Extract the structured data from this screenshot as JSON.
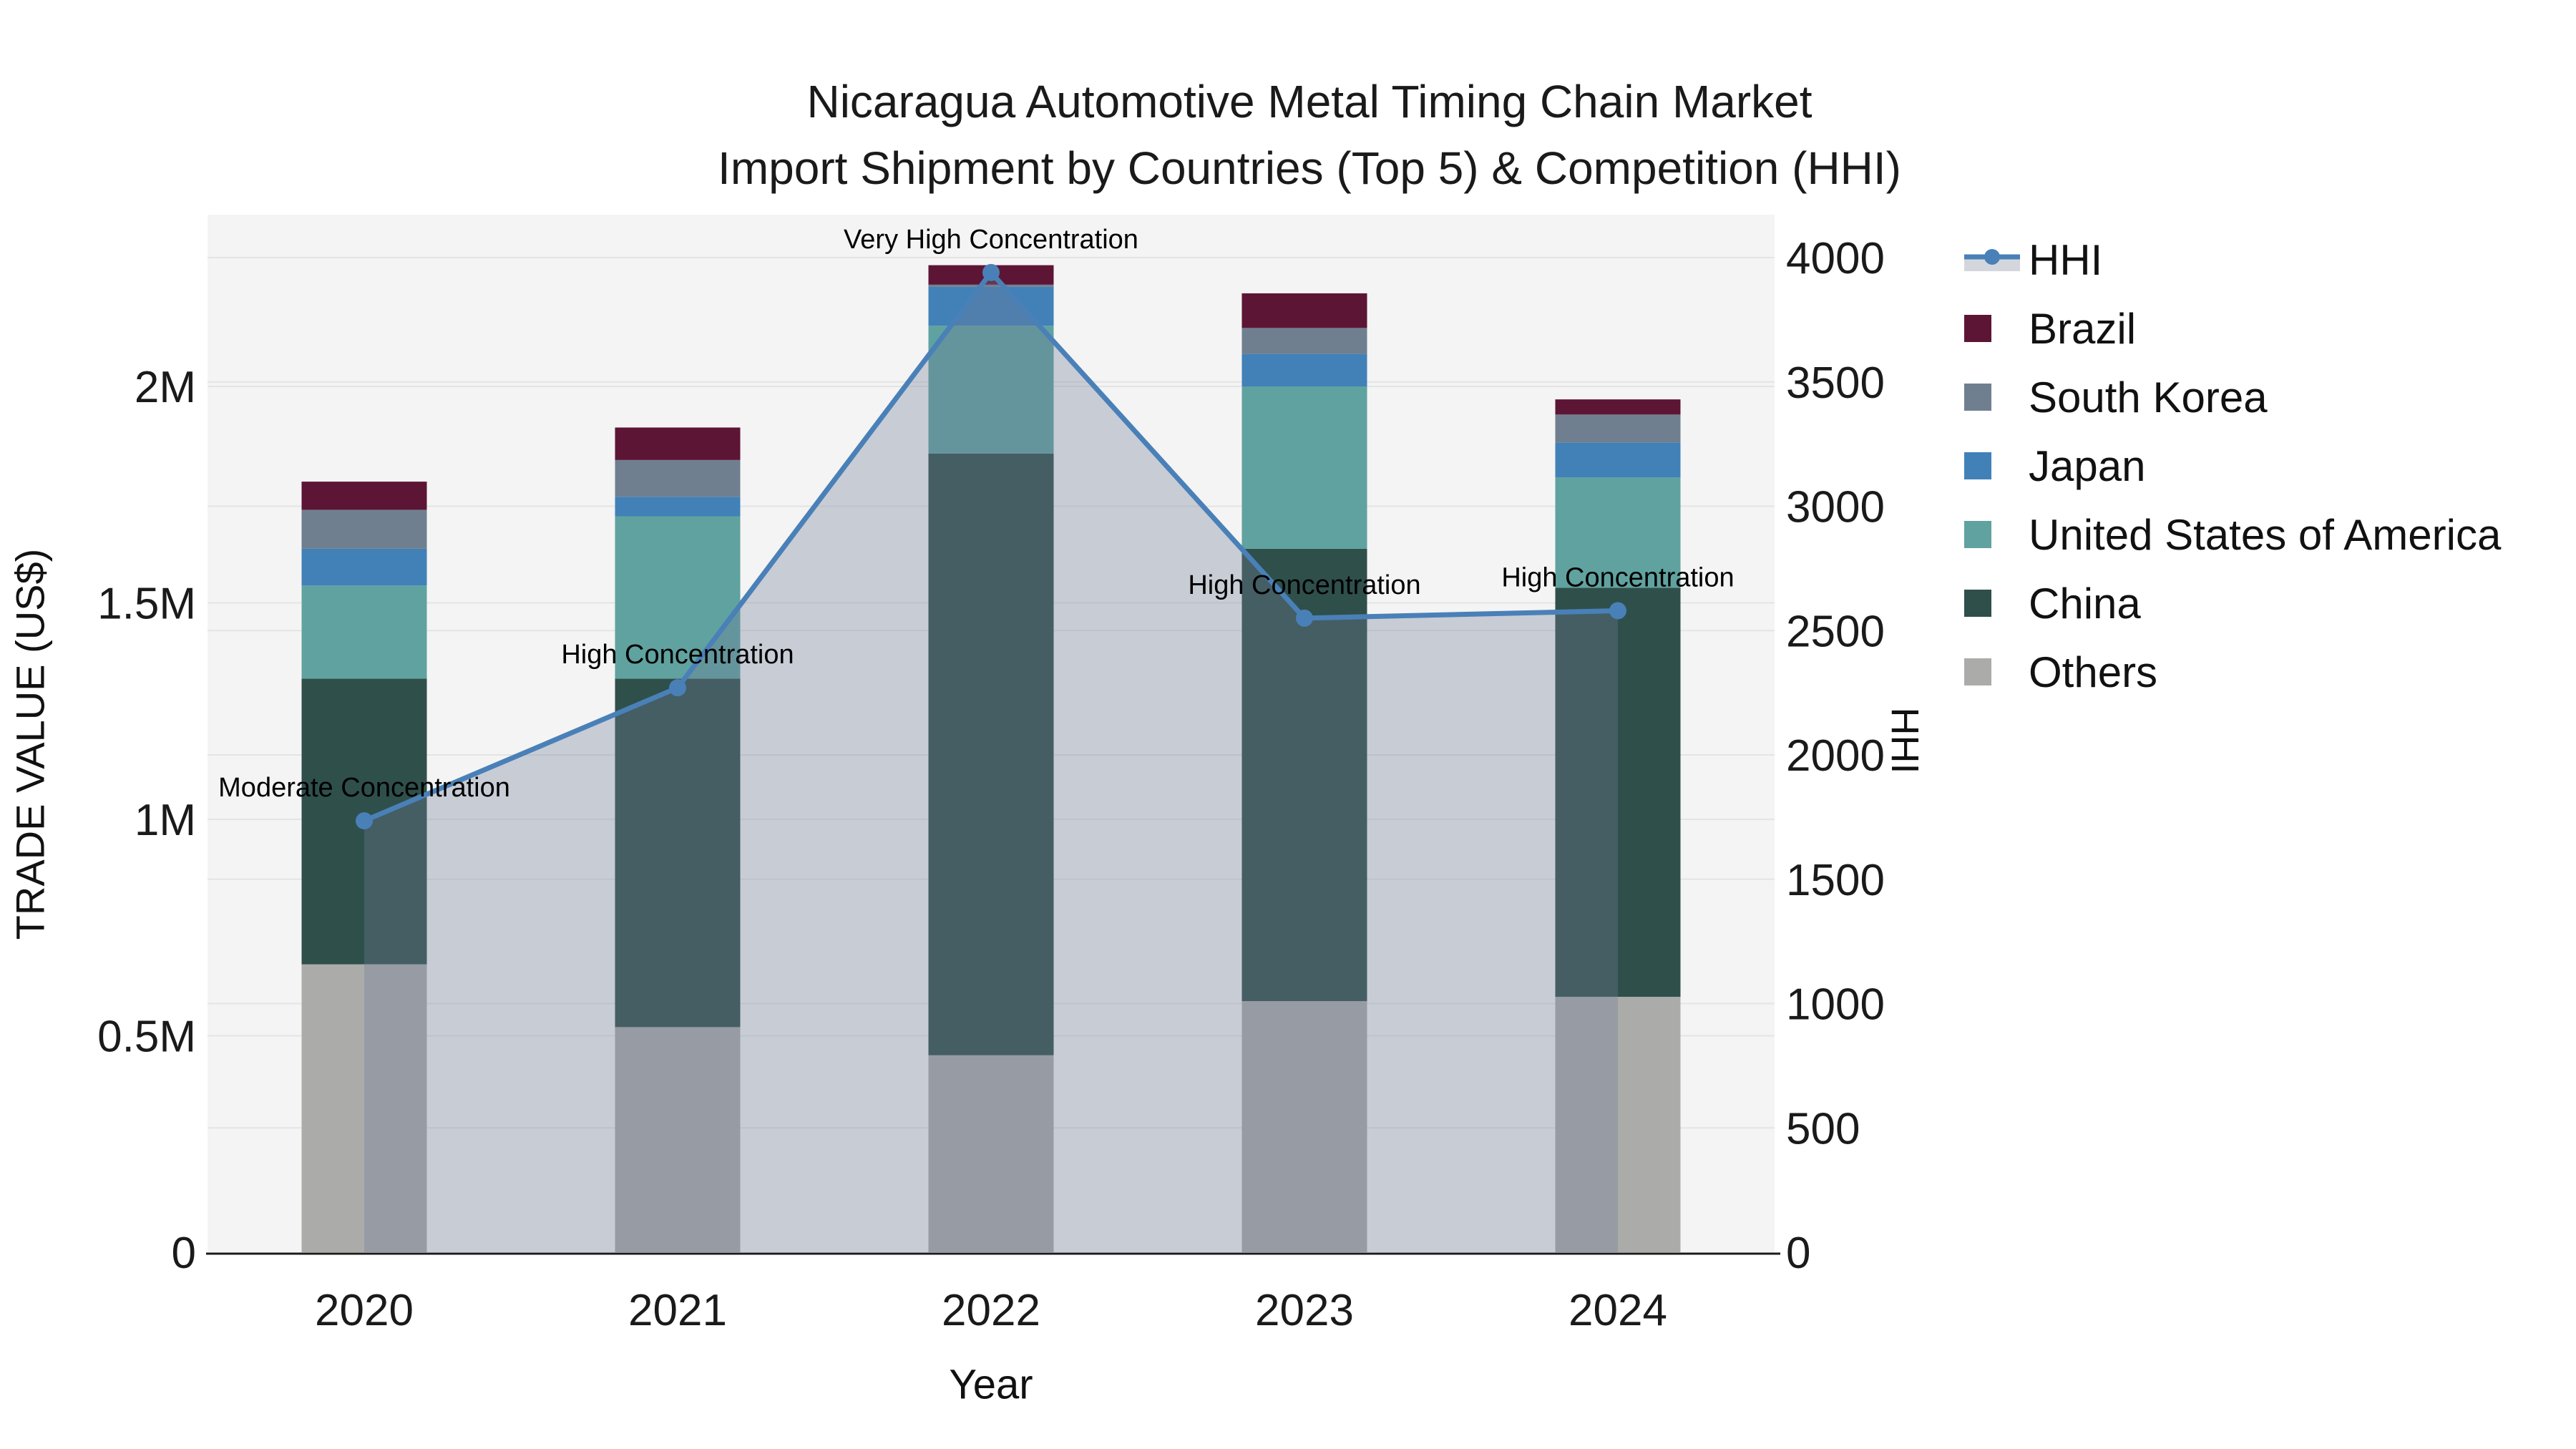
{
  "title": {
    "line1": "Nicaragua Automotive Metal Timing Chain Market",
    "line2": "Import Shipment by Countries (Top 5) & Competition (HHI)"
  },
  "colors": {
    "plot_bg": "#f4f4f4",
    "gridline": "#e4e4e4",
    "axis_line": "#1a1a1a",
    "text": "#1a1a1a",
    "hhi_line": "#4a80b8",
    "hhi_fill": "rgba(111,124,151,0.33)",
    "hhi_fill_legend": "#d3d7dd",
    "brazil": "#5d1535",
    "south_korea": "#6f7f8f",
    "japan": "#4181b8",
    "united_states_of_america": "#60a29f",
    "china": "#2f4f4b",
    "others": "#ababa9"
  },
  "legend": [
    {
      "label": "HHI",
      "kind": "line",
      "color": "#4a80b8"
    },
    {
      "label": "Brazil",
      "kind": "swatch",
      "color": "#5d1535"
    },
    {
      "label": "South Korea",
      "kind": "swatch",
      "color": "#6f7f8f"
    },
    {
      "label": "Japan",
      "kind": "swatch",
      "color": "#4181b8"
    },
    {
      "label": "United States of America",
      "kind": "swatch",
      "color": "#60a29f"
    },
    {
      "label": "China",
      "kind": "swatch",
      "color": "#2f4f4b"
    },
    {
      "label": "Others",
      "kind": "swatch",
      "color": "#ababa9"
    }
  ],
  "chart_data": {
    "type": "bar",
    "subtype": "stacked-bars-with-line-overlay",
    "categories": [
      "2020",
      "2021",
      "2022",
      "2023",
      "2024"
    ],
    "bar_value_unit": "US$ millions (left axis, M = million)",
    "series": [
      {
        "name": "Others",
        "color": "#ababa9",
        "values_m": [
          0.665,
          0.52,
          0.455,
          0.58,
          0.59
        ]
      },
      {
        "name": "China",
        "color": "#2f4f4b",
        "values_m": [
          0.66,
          0.805,
          1.39,
          1.045,
          0.945
        ]
      },
      {
        "name": "United States of America",
        "color": "#60a29f",
        "values_m": [
          0.215,
          0.375,
          0.295,
          0.375,
          0.255
        ]
      },
      {
        "name": "Japan",
        "color": "#4181b8",
        "values_m": [
          0.085,
          0.045,
          0.09,
          0.075,
          0.08
        ]
      },
      {
        "name": "South Korea",
        "color": "#6f7f8f",
        "values_m": [
          0.09,
          0.085,
          0.005,
          0.06,
          0.065
        ]
      },
      {
        "name": "Brazil",
        "color": "#5d1535",
        "values_m": [
          0.065,
          0.075,
          0.045,
          0.08,
          0.035
        ]
      }
    ],
    "stack_note": "series listed bottom-to-top",
    "line_series": {
      "name": "HHI",
      "axis": "right",
      "color": "#4a80b8",
      "fill_color": "rgba(111,124,151,0.33)",
      "values": [
        1735,
        2270,
        3940,
        2550,
        2580
      ]
    },
    "annotations": [
      {
        "category": "2020",
        "text": "Moderate Concentration"
      },
      {
        "category": "2021",
        "text": "High Concentration"
      },
      {
        "category": "2022",
        "text": "Very High Concentration"
      },
      {
        "category": "2023",
        "text": "High Concentration"
      },
      {
        "category": "2024",
        "text": "High Concentration"
      }
    ],
    "left_axis": {
      "title": "TRADE VALUE (US$)",
      "ticks": [
        {
          "label": "0",
          "value": 0
        },
        {
          "label": "0.5M",
          "value": 0.5
        },
        {
          "label": "1M",
          "value": 1
        },
        {
          "label": "1.5M",
          "value": 1.5
        },
        {
          "label": "2M",
          "value": 2
        }
      ],
      "range_m": [
        0,
        2.4
      ]
    },
    "right_axis": {
      "title": "HHI",
      "ticks": [
        0,
        500,
        1000,
        1500,
        2000,
        2500,
        3000,
        3500,
        4000
      ],
      "range": [
        0,
        4172
      ]
    },
    "x_axis": {
      "title": "Year"
    },
    "grid": {
      "horizontal": true,
      "legend_position": "right"
    }
  }
}
